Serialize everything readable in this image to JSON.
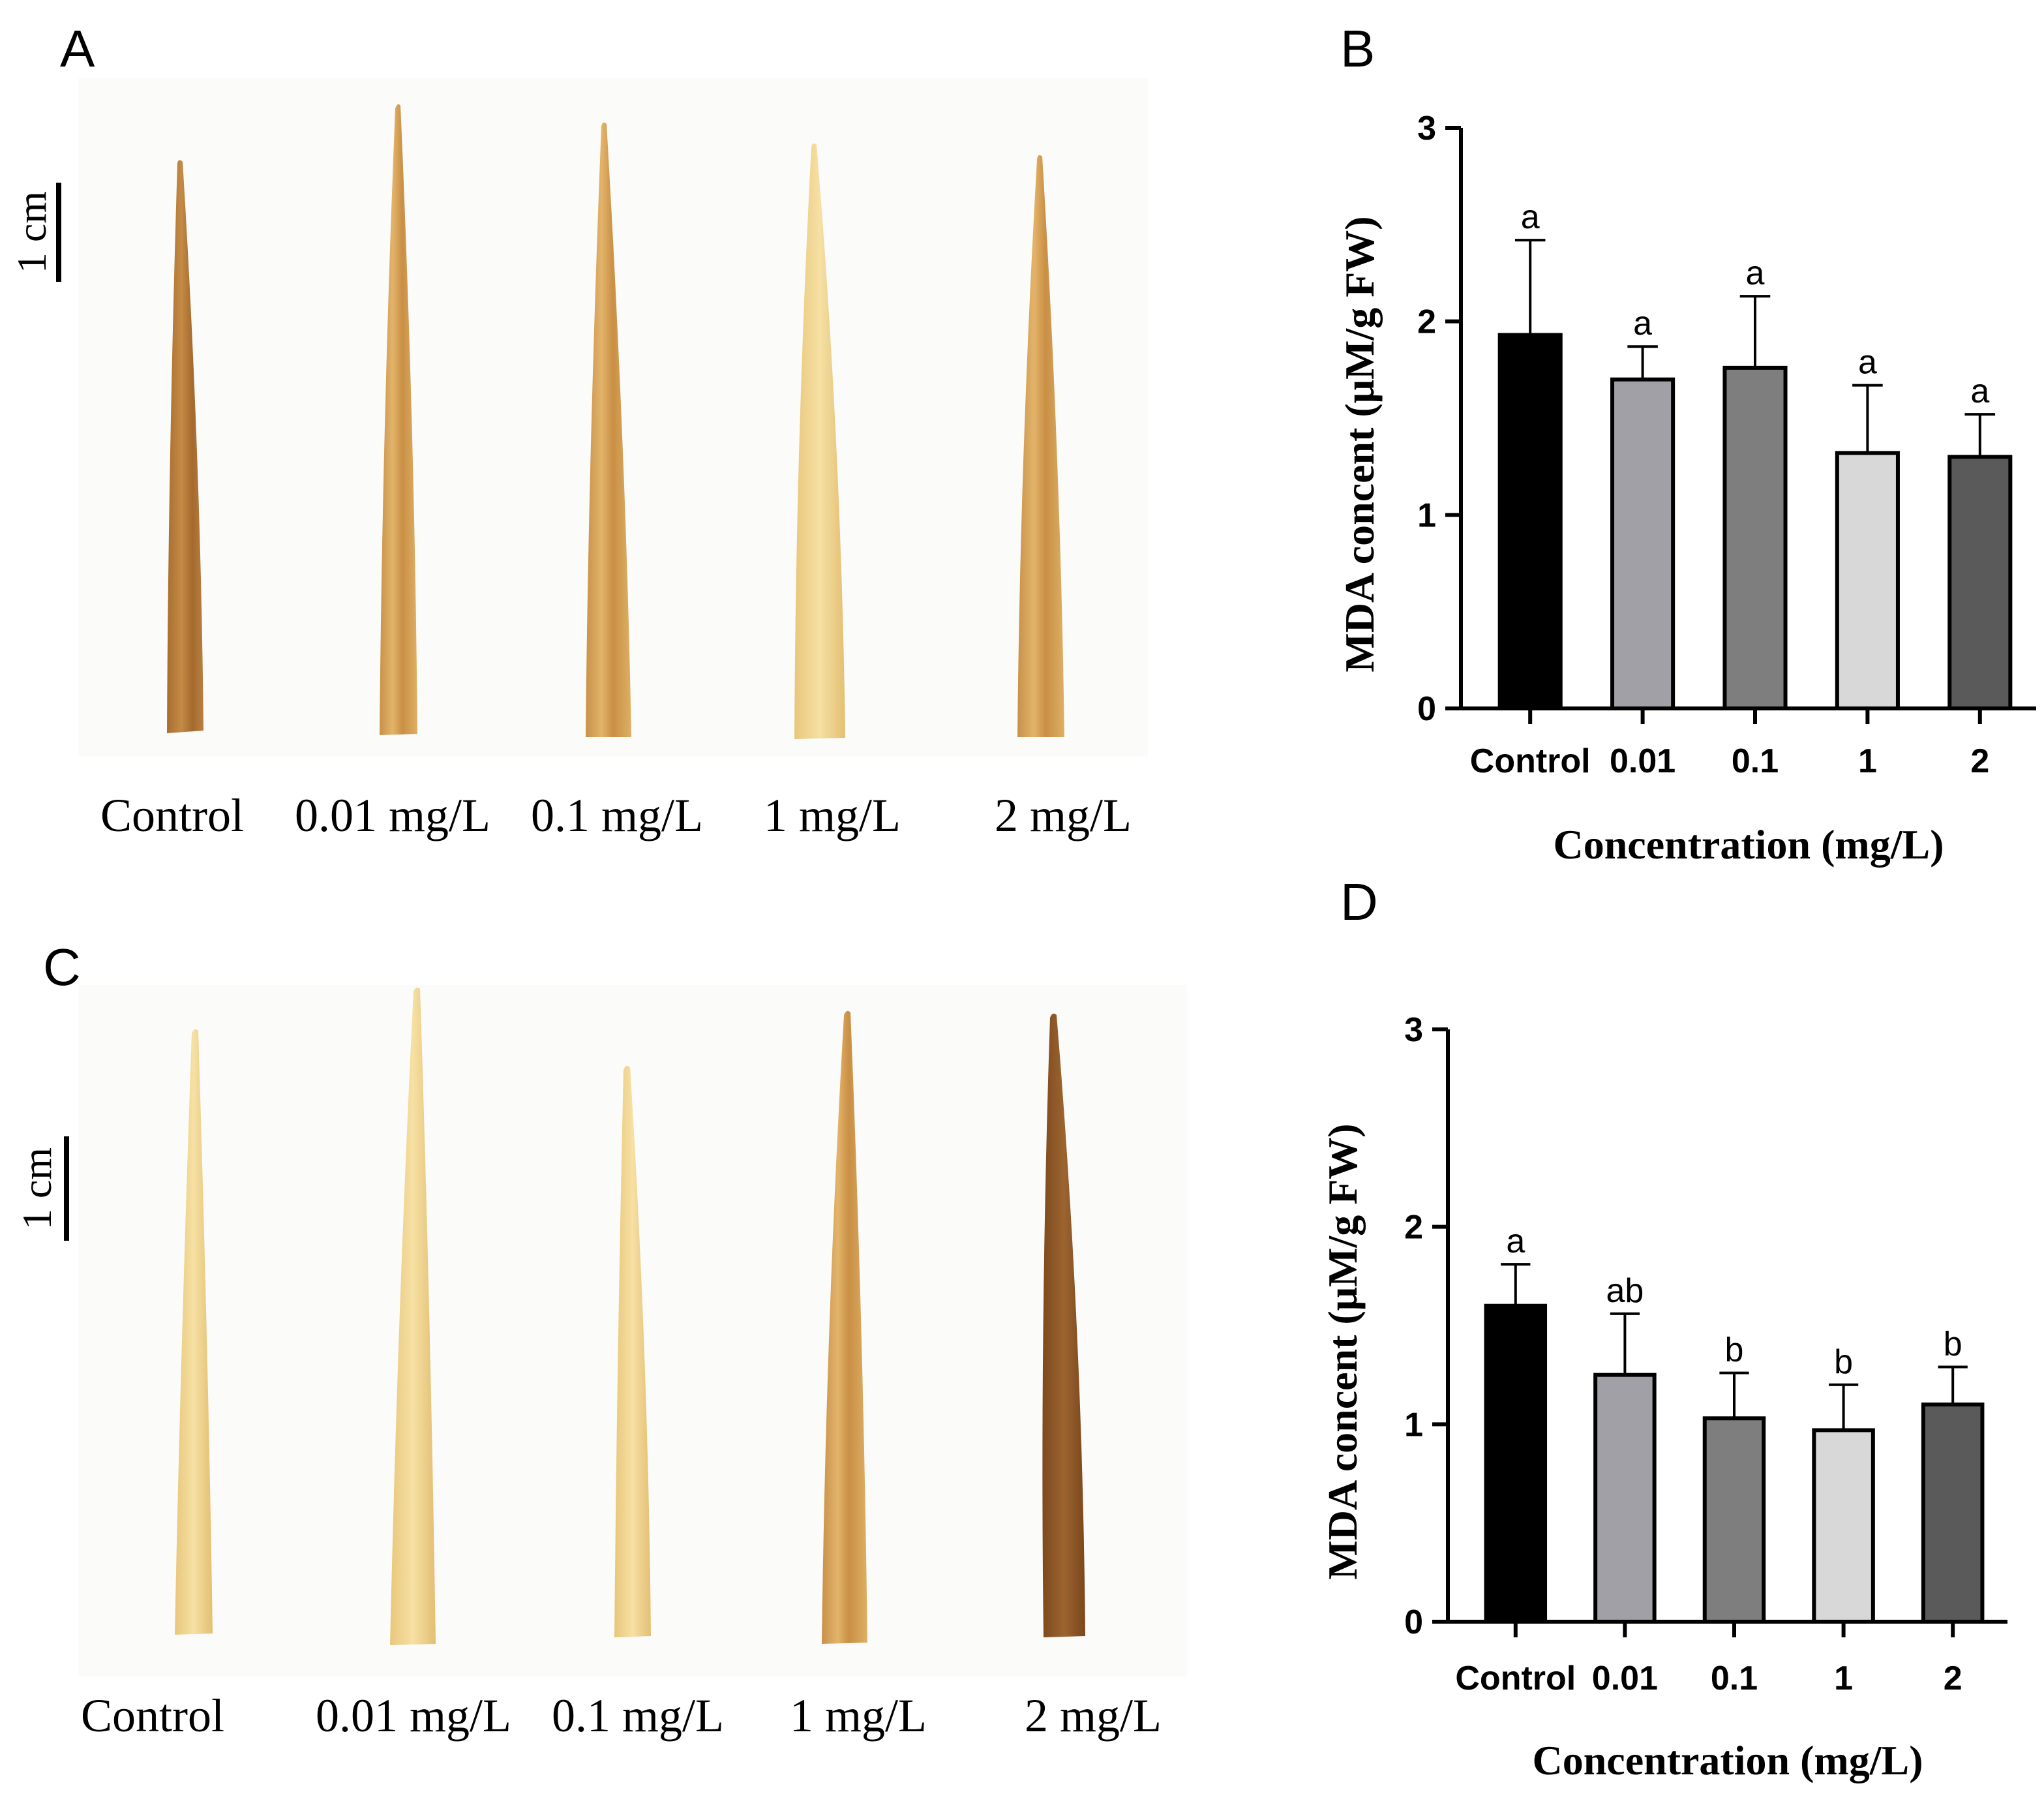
{
  "panels": {
    "A": {
      "letter": "A",
      "scale_bar_label": "1 cm",
      "labels": [
        "Control",
        "0.01 mg/L",
        "0.1 mg/L",
        "1 mg/L",
        "2 mg/L"
      ]
    },
    "B": {
      "letter": "B"
    },
    "C": {
      "letter": "C",
      "scale_bar_label": "1 cm",
      "labels": [
        "Control",
        "0.01 mg/L",
        "0.1 mg/L",
        "1 mg/L",
        "2 mg/L"
      ]
    },
    "D": {
      "letter": "D"
    }
  },
  "leaf_colors": {
    "pale": "#efd38f",
    "tan": "#d9a95c",
    "brown": "#b57a35",
    "dark_brown": "#8a5524"
  },
  "chart_data": [
    {
      "panel": "B",
      "type": "bar",
      "categories": [
        "Control",
        "0.01",
        "0.1",
        "1",
        "2"
      ],
      "values": [
        1.93,
        1.7,
        1.76,
        1.32,
        1.3
      ],
      "errors": [
        0.49,
        0.17,
        0.37,
        0.35,
        0.22
      ],
      "significance": [
        "a",
        "a",
        "a",
        "a",
        "a"
      ],
      "colors": [
        "#000000",
        "#a0a0a6",
        "#7e7e7e",
        "#d8d8d8",
        "#5a5a5a"
      ],
      "xlabel": "Concentration (mg/L)",
      "ylabel": "MDA concent (μM/g  FW)",
      "ylim": [
        0,
        3
      ],
      "yticks": [
        0,
        1,
        2,
        3
      ],
      "grid": false
    },
    {
      "panel": "D",
      "type": "bar",
      "categories": [
        "Control",
        "0.01",
        "0.1",
        "1",
        "2"
      ],
      "values": [
        1.6,
        1.25,
        1.03,
        0.97,
        1.1
      ],
      "errors": [
        0.21,
        0.31,
        0.23,
        0.23,
        0.19
      ],
      "significance": [
        "a",
        "ab",
        "b",
        "b",
        "b"
      ],
      "colors": [
        "#000000",
        "#a0a0a6",
        "#7e7e7e",
        "#d8d8d8",
        "#5a5a5a"
      ],
      "xlabel": "Concentration (mg/L)",
      "ylabel": "MDA concent (μM/g  FW)",
      "ylim": [
        0,
        3
      ],
      "yticks": [
        0,
        1,
        2,
        3
      ],
      "grid": false
    }
  ]
}
